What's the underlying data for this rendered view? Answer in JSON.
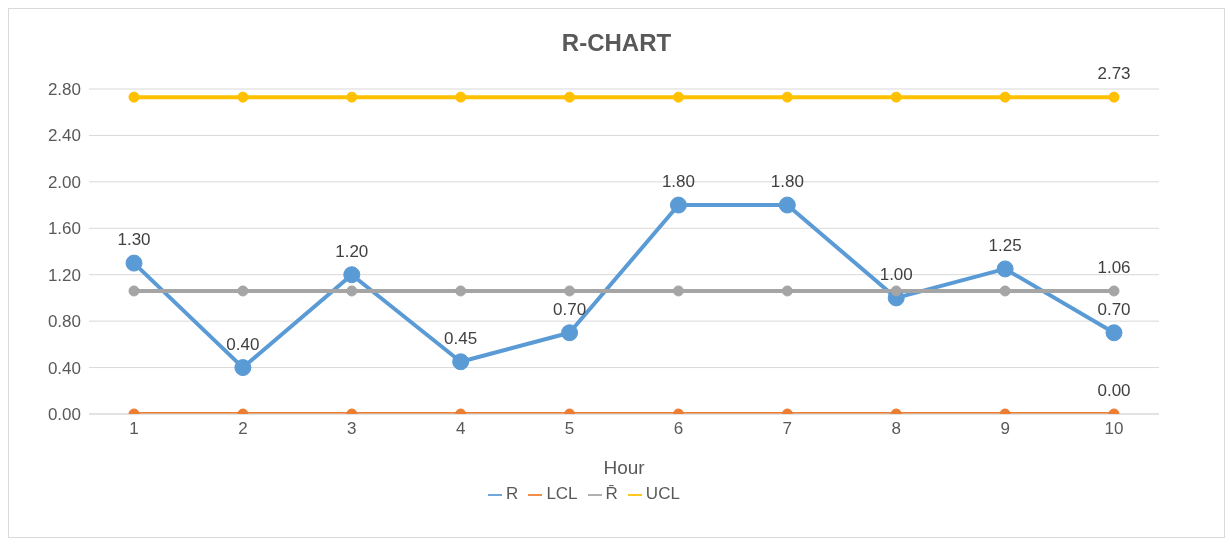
{
  "chart_data": {
    "type": "line",
    "title": "R-CHART",
    "xlabel": "Hour",
    "categories": [
      "1",
      "2",
      "3",
      "4",
      "5",
      "6",
      "7",
      "8",
      "9",
      "10"
    ],
    "series": [
      {
        "name": "R",
        "color": "#5b9bd5",
        "values": [
          1.3,
          0.4,
          1.2,
          0.45,
          0.7,
          1.8,
          1.8,
          1.0,
          1.25,
          0.7
        ],
        "value_labels": [
          "1.30",
          "0.40",
          "1.20",
          "0.45",
          "0.70",
          "1.80",
          "1.80",
          "1.00",
          "1.25",
          "0.70"
        ]
      },
      {
        "name": "LCL",
        "color": "#ed7d31",
        "values": [
          0,
          0,
          0,
          0,
          0,
          0,
          0,
          0,
          0,
          0
        ],
        "value_labels": [
          null,
          null,
          null,
          null,
          null,
          null,
          null,
          null,
          null,
          "0.00"
        ]
      },
      {
        "name": "R̄",
        "color": "#a5a5a5",
        "values": [
          1.06,
          1.06,
          1.06,
          1.06,
          1.06,
          1.06,
          1.06,
          1.06,
          1.06,
          1.06
        ],
        "value_labels": [
          null,
          null,
          null,
          null,
          null,
          null,
          null,
          null,
          null,
          "1.06"
        ]
      },
      {
        "name": "UCL",
        "color": "#ffc000",
        "values": [
          2.73,
          2.73,
          2.73,
          2.73,
          2.73,
          2.73,
          2.73,
          2.73,
          2.73,
          2.73
        ],
        "value_labels": [
          null,
          null,
          null,
          null,
          null,
          null,
          null,
          null,
          null,
          "2.73"
        ]
      }
    ],
    "ylim": [
      0,
      2.8
    ],
    "yticks": [
      {
        "value": 0,
        "label": "0.00"
      },
      {
        "value": 0.4,
        "label": "0.40"
      },
      {
        "value": 0.8,
        "label": "0.80"
      },
      {
        "value": 1.2,
        "label": "1.20"
      },
      {
        "value": 1.6,
        "label": "1.60"
      },
      {
        "value": 2.0,
        "label": "2.00"
      },
      {
        "value": 2.4,
        "label": "2.40"
      },
      {
        "value": 2.8,
        "label": "2.80"
      }
    ],
    "grid": "y",
    "legend": "bottom",
    "marker": "circle",
    "line_style": "solid"
  }
}
